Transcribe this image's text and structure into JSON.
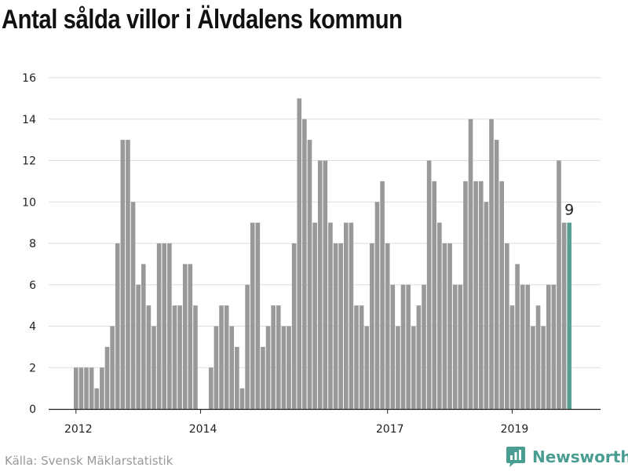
{
  "title": "Antal sålda villor i Älvdalens kommun",
  "source": "Källa: Svensk Mäklarstatistik",
  "brand": {
    "name": "Newsworthy",
    "icon": "newsworthy-logo-icon",
    "color": "#4a9d91"
  },
  "chart_data": {
    "type": "bar",
    "title": "Antal sålda villor i Älvdalens kommun",
    "xlabel": "",
    "ylabel": "",
    "ylim": [
      0,
      16
    ],
    "yticks": [
      0,
      2,
      4,
      6,
      8,
      10,
      12,
      14,
      16
    ],
    "grid": true,
    "legend": "none",
    "bar_color": "#999999",
    "highlight_color": "#5a9e94",
    "start": "2012-01",
    "xtick_labels": [
      {
        "label": "2012",
        "month": "2012-01"
      },
      {
        "label": "2014",
        "month": "2014-01"
      },
      {
        "label": "2017",
        "month": "2017-01"
      },
      {
        "label": "2019",
        "month": "2019-01"
      }
    ],
    "values": [
      2,
      2,
      2,
      2,
      1,
      2,
      3,
      4,
      8,
      13,
      13,
      10,
      6,
      7,
      5,
      4,
      8,
      8,
      8,
      5,
      5,
      7,
      7,
      5,
      0,
      0,
      2,
      4,
      5,
      5,
      4,
      3,
      1,
      6,
      9,
      9,
      3,
      4,
      5,
      5,
      4,
      4,
      8,
      15,
      14,
      13,
      9,
      12,
      12,
      9,
      8,
      8,
      9,
      9,
      5,
      5,
      4,
      8,
      10,
      11,
      8,
      6,
      4,
      6,
      6,
      4,
      5,
      6,
      12,
      11,
      9,
      8,
      8,
      6,
      6,
      11,
      14,
      11,
      11,
      10,
      14,
      13,
      11,
      8,
      5,
      7,
      6,
      6,
      4,
      5,
      4,
      6,
      6,
      12,
      9,
      9
    ],
    "last_value_label": "9"
  }
}
